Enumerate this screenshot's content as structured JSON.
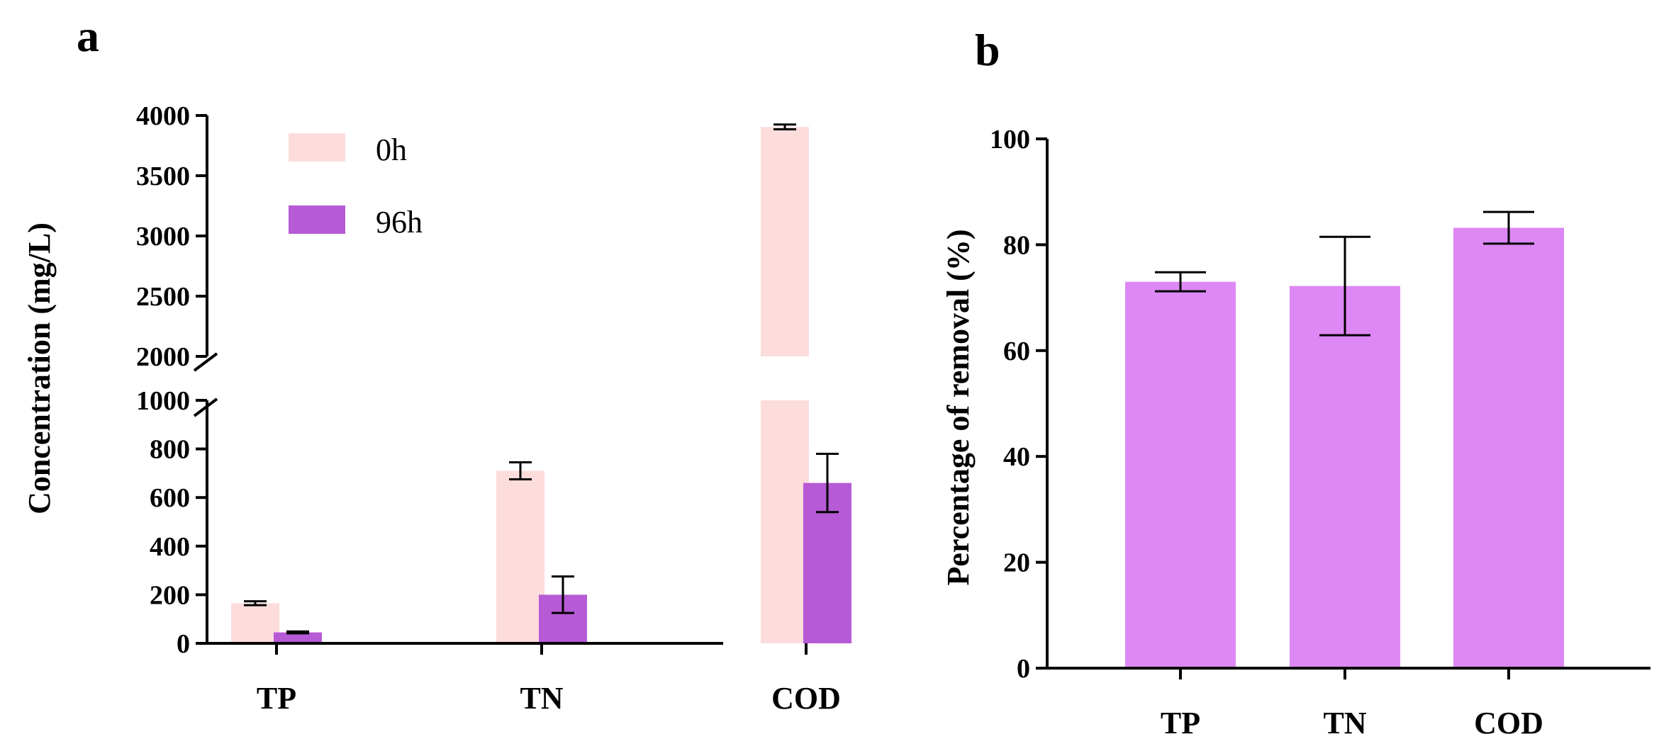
{
  "panels": {
    "a": {
      "letter": "a"
    },
    "b": {
      "letter": "b"
    }
  },
  "colors": {
    "series_0h": "#fddcdc",
    "series_96h": "#b65ad6",
    "removal": "#dd88f4",
    "axis": "#000000"
  },
  "chart_data": [
    {
      "panel": "a",
      "type": "bar",
      "categories": [
        "TP",
        "TN",
        "COD"
      ],
      "ylabel": "Concentration (mg/L)",
      "xlabel": "",
      "axis_break": {
        "lower": [
          0,
          1000
        ],
        "upper": [
          2000,
          4000
        ]
      },
      "yticks_lower": [
        0,
        200,
        400,
        600,
        800,
        1000
      ],
      "yticks_upper": [
        2000,
        2500,
        3000,
        3500,
        4000
      ],
      "legend": {
        "placement": "top-center"
      },
      "series": [
        {
          "name": "0h",
          "values": [
            165,
            710,
            3905
          ],
          "errors": [
            8,
            35,
            20
          ]
        },
        {
          "name": "96h",
          "values": [
            45,
            200,
            660
          ],
          "errors": [
            4,
            75,
            120
          ]
        }
      ]
    },
    {
      "panel": "b",
      "type": "bar",
      "categories": [
        "TP",
        "TN",
        "COD"
      ],
      "ylabel": "Percentage of removal (%)",
      "xlabel": "",
      "ylim": [
        0,
        100
      ],
      "yticks": [
        0,
        20,
        40,
        60,
        80,
        100
      ],
      "series": [
        {
          "values": [
            73,
            72.2,
            83.2
          ],
          "errors": [
            1.8,
            9.3,
            3.0
          ]
        }
      ]
    }
  ]
}
